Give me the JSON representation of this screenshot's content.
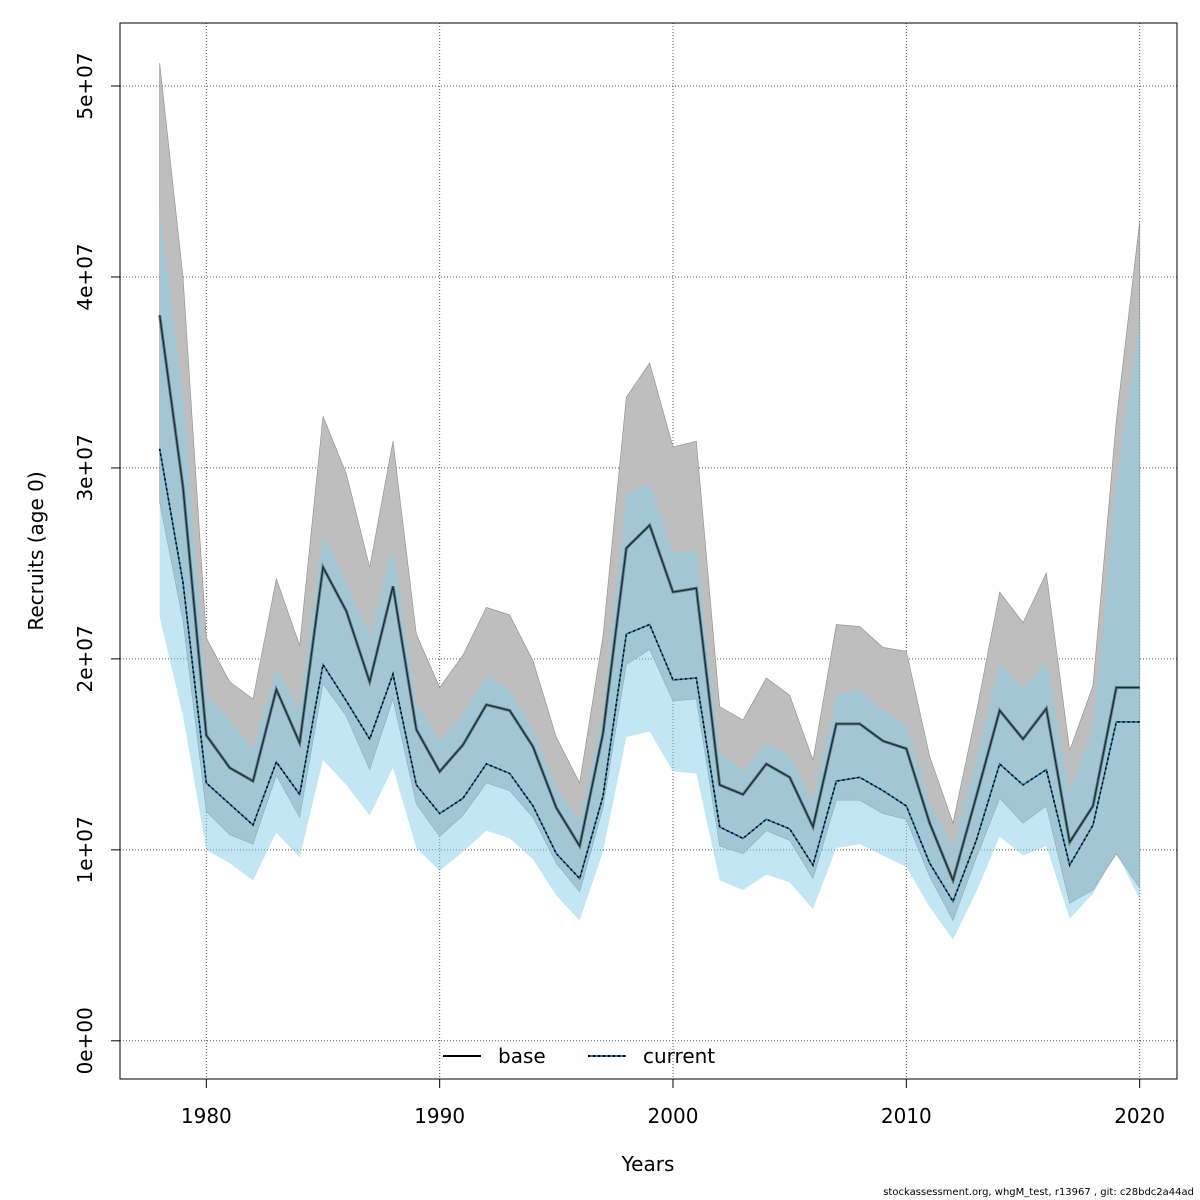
{
  "chart_data": {
    "type": "line",
    "xlabel": "Years",
    "ylabel": "Recruits (age 0)",
    "xlim": [
      1976.3,
      2021.6
    ],
    "ylim": [
      -2000000,
      53300000
    ],
    "x_ticks": [
      1980,
      1990,
      2000,
      2010,
      2020
    ],
    "x_tick_labels": [
      "1980",
      "1990",
      "2000",
      "2010",
      "2020"
    ],
    "y_ticks": [
      0,
      10000000,
      20000000,
      30000000,
      40000000,
      50000000
    ],
    "y_tick_labels": [
      "0e+00",
      "1e+07",
      "2e+07",
      "3e+07",
      "4e+07",
      "5e+07"
    ],
    "grid": true,
    "legend_position": "bottom",
    "x": [
      1978,
      1979,
      1980,
      1981,
      1982,
      1983,
      1984,
      1985,
      1986,
      1987,
      1988,
      1989,
      1990,
      1991,
      1992,
      1993,
      1994,
      1995,
      1996,
      1997,
      1998,
      1999,
      2000,
      2001,
      2002,
      2003,
      2004,
      2005,
      2006,
      2007,
      2008,
      2009,
      2010,
      2011,
      2012,
      2013,
      2014,
      2015,
      2016,
      2017,
      2018,
      2019,
      2020
    ],
    "series": [
      {
        "name": "base",
        "line_style": "solid",
        "color": "#000000",
        "band_color": "#bebebe",
        "values": [
          38000000,
          29000000,
          16000000,
          14300000,
          13600000,
          18400000,
          15600000,
          24800000,
          22500000,
          18800000,
          23800000,
          16300000,
          14100000,
          15500000,
          17600000,
          17300000,
          15400000,
          12200000,
          10200000,
          16100000,
          25800000,
          27000000,
          23500000,
          23700000,
          13400000,
          12900000,
          14500000,
          13800000,
          11200000,
          16600000,
          16600000,
          15700000,
          15300000,
          11400000,
          8400000,
          12800000,
          17300000,
          15800000,
          17400000,
          10400000,
          12300000,
          18500000,
          18500000
        ],
        "lower": [
          28200000,
          22000000,
          12000000,
          10800000,
          10300000,
          13900000,
          11700000,
          18700000,
          17000000,
          14200000,
          17900000,
          12400000,
          10700000,
          11800000,
          13500000,
          13100000,
          11700000,
          9300000,
          7800000,
          12200000,
          19700000,
          20500000,
          17800000,
          17900000,
          10200000,
          9800000,
          11000000,
          10500000,
          8500000,
          12600000,
          12600000,
          11900000,
          11600000,
          8600000,
          6300000,
          9600000,
          12700000,
          11400000,
          12300000,
          7200000,
          7900000,
          9800000,
          8000000
        ],
        "upper": [
          51200000,
          40000000,
          21100000,
          18800000,
          17900000,
          24200000,
          20700000,
          32700000,
          29700000,
          24800000,
          31400000,
          21300000,
          18500000,
          20200000,
          22700000,
          22300000,
          19900000,
          15900000,
          13500000,
          21200000,
          33700000,
          35500000,
          31100000,
          31400000,
          17500000,
          16800000,
          19000000,
          18100000,
          14700000,
          21800000,
          21700000,
          20600000,
          20400000,
          14900000,
          11400000,
          17200000,
          23500000,
          21900000,
          24500000,
          15200000,
          18600000,
          32500000,
          42900000
        ]
      },
      {
        "name": "current",
        "line_style": "dotted",
        "color": "#000000",
        "band_color": "#87ceeb",
        "values": [
          31000000,
          24000000,
          13500000,
          12400000,
          11300000,
          14600000,
          12900000,
          19700000,
          17800000,
          15800000,
          19200000,
          13400000,
          11900000,
          12700000,
          14500000,
          14000000,
          12300000,
          9800000,
          8500000,
          12800000,
          21300000,
          21800000,
          18900000,
          19000000,
          11200000,
          10600000,
          11600000,
          11100000,
          9200000,
          13600000,
          13800000,
          13100000,
          12300000,
          9300000,
          7300000,
          10500000,
          14500000,
          13400000,
          14200000,
          9200000,
          11300000,
          16700000,
          16700000
        ],
        "lower": [
          22200000,
          17000000,
          10000000,
          9300000,
          8400000,
          10900000,
          9600000,
          14700000,
          13400000,
          11800000,
          14300000,
          10100000,
          8900000,
          9900000,
          11000000,
          10600000,
          9500000,
          7600000,
          6300000,
          9900000,
          15900000,
          16200000,
          14100000,
          14000000,
          8400000,
          7900000,
          8700000,
          8300000,
          6900000,
          10100000,
          10300000,
          9700000,
          9100000,
          7000000,
          5300000,
          7800000,
          10700000,
          9700000,
          10200000,
          6400000,
          7700000,
          9900000,
          7400000
        ],
        "upper": [
          43500000,
          33700000,
          18200000,
          16800000,
          15200000,
          19500000,
          17300000,
          26500000,
          24000000,
          21200000,
          25800000,
          17700000,
          15700000,
          17100000,
          19100000,
          18400000,
          16300000,
          13200000,
          11600000,
          17000000,
          28600000,
          29200000,
          25500000,
          25700000,
          15100000,
          14100000,
          15600000,
          14900000,
          12600000,
          18100000,
          18400000,
          17300000,
          16500000,
          12500000,
          10100000,
          14700000,
          19800000,
          18400000,
          19900000,
          13100000,
          16300000,
          29200000,
          37800000
        ]
      }
    ]
  },
  "footer": "stockassessment.org, whgM_test, r13967 , git: c28bdc2a44ad"
}
